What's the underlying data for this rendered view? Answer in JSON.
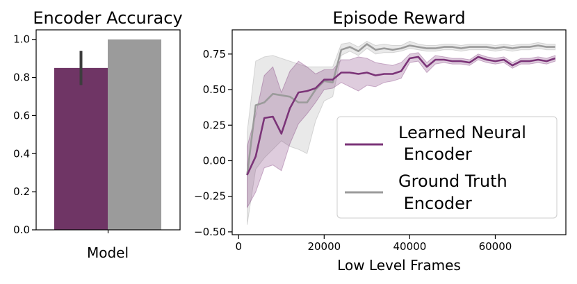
{
  "chart_data": [
    {
      "type": "bar",
      "title": "Encoder Accuracy",
      "xlabel": "Model",
      "ylabel": "",
      "ylim": [
        0,
        1.05
      ],
      "yticks": [
        "0.0",
        "0.2",
        "0.4",
        "0.6",
        "0.8",
        "1.0"
      ],
      "series": [
        {
          "name": "Learned Neural Encoder",
          "value": 0.85,
          "error": [
            0.76,
            0.94
          ],
          "color": "#6f3565"
        },
        {
          "name": "Ground Truth Encoder",
          "value": 1.0,
          "error": null,
          "color": "#9b9b9b"
        }
      ]
    },
    {
      "type": "line",
      "title": "Episode Reward",
      "xlabel": "Low Level Frames",
      "ylabel": "",
      "xlim": [
        -1500,
        76500
      ],
      "ylim": [
        -0.52,
        0.92
      ],
      "xticks": [
        "0",
        "20000",
        "40000",
        "60000"
      ],
      "yticks": [
        "−0.50",
        "−0.25",
        "0.00",
        "0.25",
        "0.50",
        "0.75"
      ],
      "legend": {
        "position": "lower-right",
        "entries": [
          "Learned Neural\n Encoder",
          "Ground Truth\n Encoder"
        ]
      },
      "x": [
        2000,
        4000,
        6000,
        8000,
        10000,
        12000,
        14000,
        16000,
        18000,
        20000,
        22000,
        24000,
        26000,
        28000,
        30000,
        32000,
        34000,
        36000,
        38000,
        40000,
        42000,
        44000,
        46000,
        48000,
        50000,
        52000,
        54000,
        56000,
        58000,
        60000,
        62000,
        64000,
        66000,
        68000,
        70000,
        72000,
        74000
      ],
      "series": [
        {
          "name": "Learned Neural Encoder",
          "color": "#7b3478",
          "y": [
            -0.1,
            0.03,
            0.3,
            0.31,
            0.19,
            0.37,
            0.48,
            0.49,
            0.51,
            0.57,
            0.57,
            0.62,
            0.62,
            0.61,
            0.62,
            0.6,
            0.61,
            0.61,
            0.63,
            0.72,
            0.73,
            0.66,
            0.71,
            0.71,
            0.7,
            0.7,
            0.69,
            0.73,
            0.71,
            0.7,
            0.71,
            0.67,
            0.7,
            0.7,
            0.71,
            0.7,
            0.72
          ],
          "lower": [
            -0.33,
            -0.22,
            -0.05,
            -0.03,
            -0.07,
            0.12,
            0.26,
            0.33,
            0.41,
            0.5,
            0.51,
            0.55,
            0.52,
            0.49,
            0.53,
            0.52,
            0.55,
            0.56,
            0.58,
            0.69,
            0.7,
            0.62,
            0.68,
            0.69,
            0.68,
            0.68,
            0.67,
            0.71,
            0.69,
            0.68,
            0.69,
            0.65,
            0.68,
            0.68,
            0.69,
            0.68,
            0.7
          ],
          "upper": [
            0.1,
            0.32,
            0.6,
            0.66,
            0.48,
            0.63,
            0.7,
            0.66,
            0.61,
            0.64,
            0.64,
            0.71,
            0.71,
            0.73,
            0.72,
            0.69,
            0.68,
            0.67,
            0.69,
            0.75,
            0.76,
            0.69,
            0.74,
            0.73,
            0.72,
            0.72,
            0.71,
            0.75,
            0.73,
            0.72,
            0.73,
            0.69,
            0.72,
            0.72,
            0.73,
            0.72,
            0.74
          ]
        },
        {
          "name": "Ground Truth Encoder",
          "color": "#9b9b9b",
          "y": [
            -0.1,
            0.39,
            0.41,
            0.47,
            0.46,
            0.45,
            0.41,
            0.41,
            0.5,
            0.56,
            0.55,
            0.78,
            0.8,
            0.77,
            0.82,
            0.78,
            0.79,
            0.78,
            0.79,
            0.81,
            0.8,
            0.79,
            0.79,
            0.8,
            0.8,
            0.79,
            0.8,
            0.8,
            0.8,
            0.79,
            0.8,
            0.79,
            0.8,
            0.8,
            0.81,
            0.8,
            0.8
          ],
          "lower": [
            -0.45,
            -0.06,
            0.02,
            0.08,
            0.14,
            0.1,
            0.08,
            0.05,
            0.28,
            0.42,
            0.45,
            0.74,
            0.77,
            0.74,
            0.79,
            0.75,
            0.76,
            0.76,
            0.77,
            0.79,
            0.78,
            0.77,
            0.77,
            0.78,
            0.78,
            0.77,
            0.78,
            0.78,
            0.78,
            0.77,
            0.78,
            0.77,
            0.78,
            0.78,
            0.79,
            0.78,
            0.78
          ],
          "upper": [
            0.2,
            0.7,
            0.73,
            0.74,
            0.72,
            0.7,
            0.68,
            0.66,
            0.66,
            0.66,
            0.66,
            0.82,
            0.83,
            0.8,
            0.84,
            0.81,
            0.82,
            0.81,
            0.81,
            0.84,
            0.82,
            0.81,
            0.81,
            0.82,
            0.82,
            0.81,
            0.82,
            0.82,
            0.82,
            0.81,
            0.82,
            0.81,
            0.82,
            0.82,
            0.83,
            0.82,
            0.82
          ]
        }
      ]
    }
  ]
}
